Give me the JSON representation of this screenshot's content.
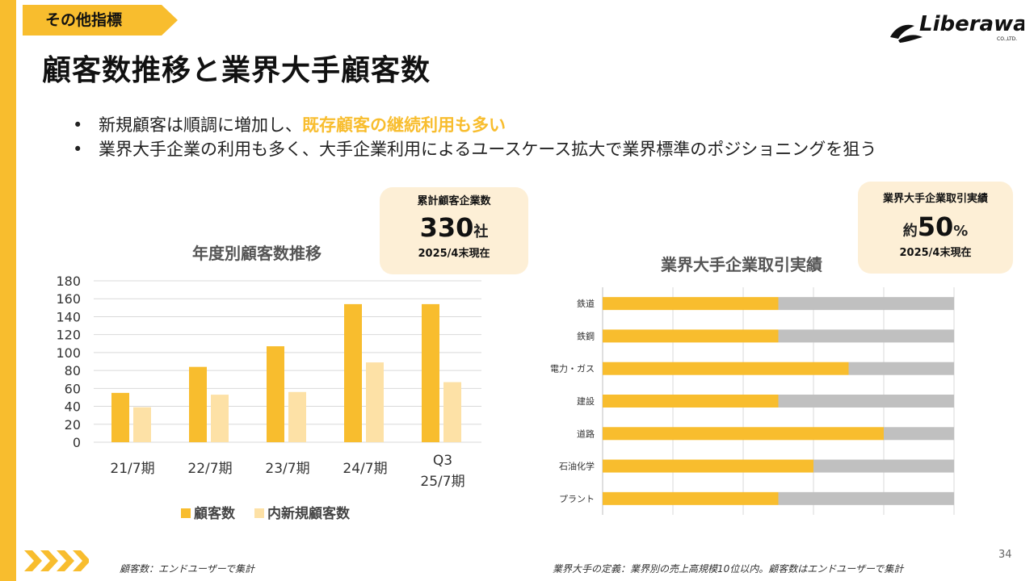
{
  "section_tag": "その他指標",
  "page_title": "顧客数推移と業界大手顧客数",
  "logo_text": "Liberaware",
  "logo_sub": "CO.,LTD.",
  "bullets": [
    {
      "plain": "新規顧客は順調に増加し、",
      "highlight": "既存顧客の継続利用も多い"
    },
    {
      "plain": "業界大手企業の利用も多く、大手企業利用によるユースケース拡大で業界標準のポジショニングを狙う"
    }
  ],
  "badge_left": {
    "label": "累計顧客企業数",
    "value": "330",
    "unit": "社",
    "date": "2025/4末現在"
  },
  "badge_right": {
    "label": "業界大手企業取引実績",
    "prefix": "約",
    "value": "50",
    "unit": "%",
    "date": "2025/4末現在"
  },
  "colors": {
    "accent": "#f8bd2e",
    "light": "#fde1a6",
    "gray": "#c0c0c0",
    "badge_bg": "#fdefd6"
  },
  "chart_data": [
    {
      "type": "bar",
      "title": "年度別顧客数推移",
      "categories": [
        "21/7期",
        "22/7期",
        "23/7期",
        "24/7期",
        "Q3\n25/7期"
      ],
      "series": [
        {
          "name": "顧客数",
          "values": [
            55,
            84,
            107,
            154,
            154
          ]
        },
        {
          "name": "内新規顧客数",
          "values": [
            39,
            53,
            56,
            89,
            67
          ]
        }
      ],
      "ylim": [
        0,
        180
      ],
      "yticks": [
        0,
        20,
        40,
        60,
        80,
        100,
        120,
        140,
        160,
        180
      ],
      "grid": true,
      "legend": "bottom"
    },
    {
      "type": "bar",
      "orientation": "horizontal",
      "stacked": true,
      "title": "業界大手企業取引実績",
      "categories": [
        "鉄道",
        "鉄鋼",
        "電力・ガス",
        "建設",
        "道路",
        "石油化学",
        "プラント"
      ],
      "series": [
        {
          "values": [
            50,
            50,
            70,
            50,
            80,
            60,
            50
          ]
        },
        {
          "values": [
            50,
            50,
            30,
            50,
            20,
            40,
            50
          ]
        }
      ],
      "xlim": [
        0,
        100
      ],
      "grid": true
    }
  ],
  "footnotes": {
    "left": "顧客数：エンドユーザーで集計",
    "right": "業界大手の定義：業界別の売上高規模10位以内。顧客数はエンドユーザーで集計"
  },
  "page_number": "34"
}
